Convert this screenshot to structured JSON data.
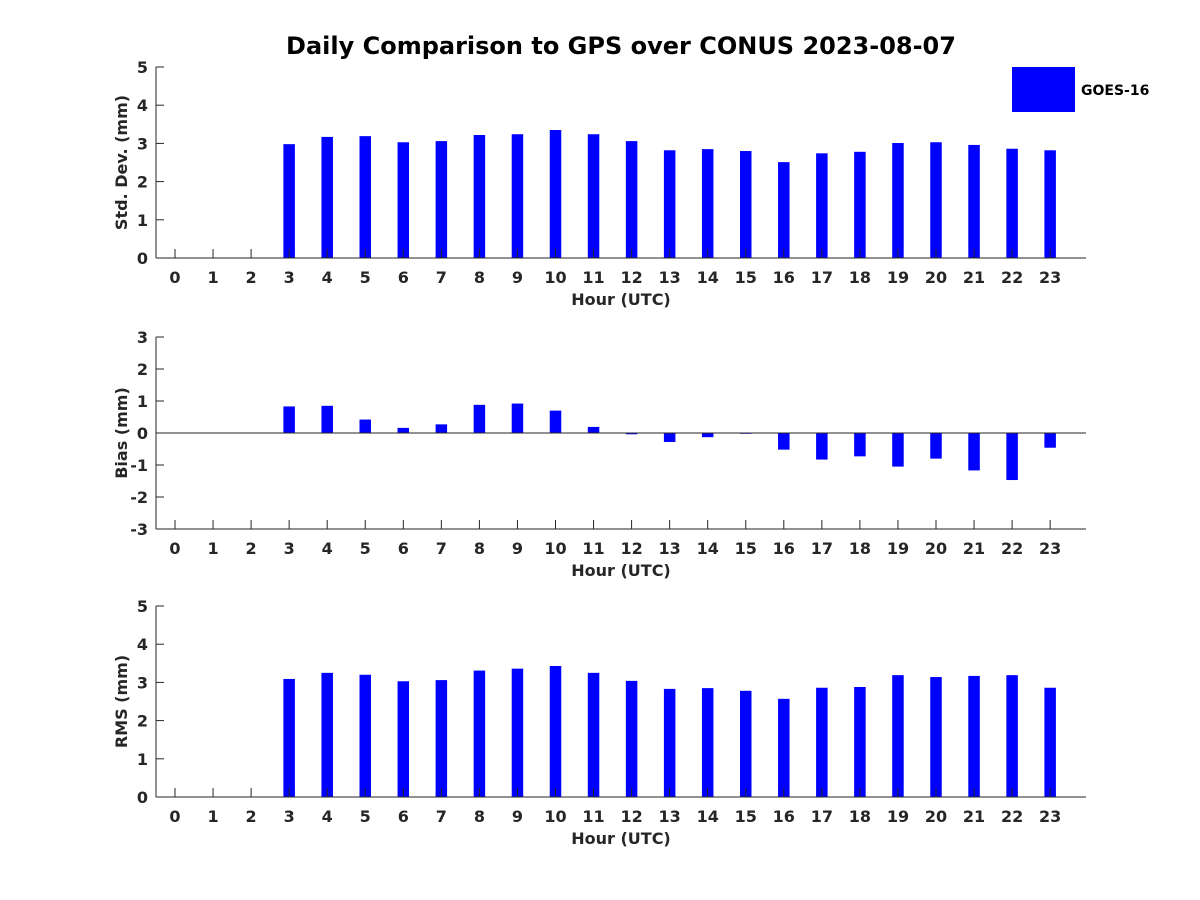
{
  "title": "Daily Comparison to GPS over CONUS 2023-08-07",
  "legend": {
    "label": "GOES-16",
    "position": "top-right"
  },
  "colors": {
    "bar": "#0000ff",
    "axis": "#262626",
    "title": "#000000"
  },
  "chart_data": [
    {
      "type": "bar",
      "name": "std-dev",
      "xlabel": "Hour (UTC)",
      "ylabel": "Std. Dev. (mm)",
      "ylim": [
        0,
        5
      ],
      "yticks": [
        0,
        1,
        2,
        3,
        4,
        5
      ],
      "categories": [
        0,
        1,
        2,
        3,
        4,
        5,
        6,
        7,
        8,
        9,
        10,
        11,
        12,
        13,
        14,
        15,
        16,
        17,
        18,
        19,
        20,
        21,
        22,
        23
      ],
      "series": [
        {
          "name": "GOES-16",
          "values": [
            null,
            null,
            null,
            2.98,
            3.17,
            3.19,
            3.03,
            3.06,
            3.22,
            3.24,
            3.35,
            3.24,
            3.06,
            2.82,
            2.85,
            2.8,
            2.51,
            2.74,
            2.78,
            3.01,
            3.03,
            2.96,
            2.86,
            2.82
          ]
        }
      ]
    },
    {
      "type": "bar",
      "name": "bias",
      "xlabel": "Hour (UTC)",
      "ylabel": "Bias (mm)",
      "ylim": [
        -3,
        3
      ],
      "yticks": [
        -3,
        -2,
        -1,
        0,
        1,
        2,
        3
      ],
      "categories": [
        0,
        1,
        2,
        3,
        4,
        5,
        6,
        7,
        8,
        9,
        10,
        11,
        12,
        13,
        14,
        15,
        16,
        17,
        18,
        19,
        20,
        21,
        22,
        23
      ],
      "series": [
        {
          "name": "GOES-16",
          "values": [
            null,
            null,
            null,
            0.83,
            0.85,
            0.42,
            0.16,
            0.27,
            0.88,
            0.92,
            0.7,
            0.19,
            -0.04,
            -0.28,
            -0.13,
            0.0,
            -0.52,
            -0.83,
            -0.73,
            -1.05,
            -0.8,
            -1.17,
            -1.47,
            -0.46
          ]
        }
      ]
    },
    {
      "type": "bar",
      "name": "rms",
      "xlabel": "Hour (UTC)",
      "ylabel": "RMS (mm)",
      "ylim": [
        0,
        5
      ],
      "yticks": [
        0,
        1,
        2,
        3,
        4,
        5
      ],
      "categories": [
        0,
        1,
        2,
        3,
        4,
        5,
        6,
        7,
        8,
        9,
        10,
        11,
        12,
        13,
        14,
        15,
        16,
        17,
        18,
        19,
        20,
        21,
        22,
        23
      ],
      "series": [
        {
          "name": "GOES-16",
          "values": [
            null,
            null,
            null,
            3.09,
            3.25,
            3.2,
            3.03,
            3.06,
            3.31,
            3.36,
            3.43,
            3.25,
            3.04,
            2.83,
            2.85,
            2.78,
            2.57,
            2.86,
            2.88,
            3.19,
            3.14,
            3.17,
            3.19,
            2.86
          ]
        }
      ]
    }
  ]
}
